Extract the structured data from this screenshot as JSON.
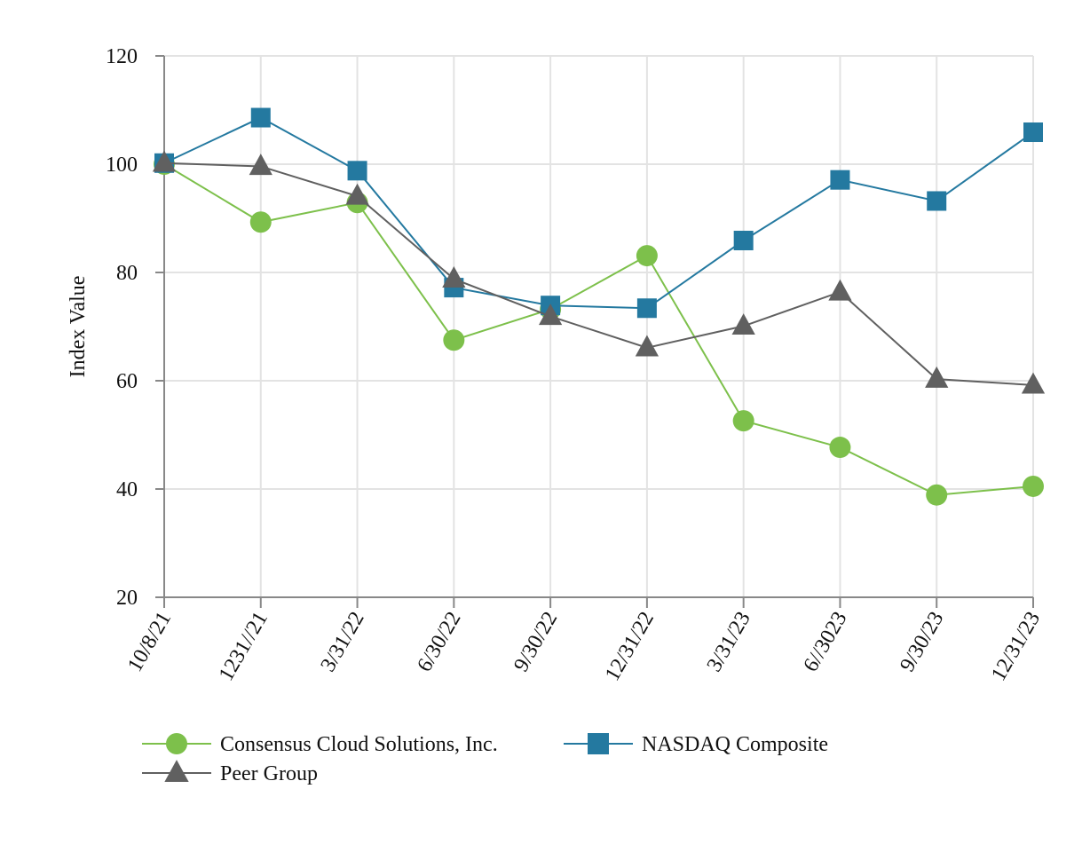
{
  "chart_data": {
    "type": "line",
    "title": "",
    "xlabel": "",
    "ylabel": "Index Value",
    "categories": [
      "10/8/21",
      "1231//21",
      "3/31/22",
      "6/30/22",
      "9/30/22",
      "12/31/22",
      "3/31/23",
      "6//3023",
      "9/30/23",
      "12/31/23"
    ],
    "ylim": [
      20,
      120
    ],
    "yticks": [
      "20",
      "40",
      "60",
      "80",
      "100",
      "120"
    ],
    "grid": true,
    "legend_position": "bottom",
    "series": [
      {
        "name": "Consensus Cloud Solutions, Inc.",
        "color": "#7dc04b",
        "marker": "circle",
        "values": [
          100,
          89.3,
          92.9,
          67.5,
          73.2,
          83.1,
          52.6,
          47.7,
          38.9,
          40.5
        ]
      },
      {
        "name": "NASDAQ Composite",
        "color": "#2479a0",
        "marker": "square",
        "values": [
          100.2,
          108.6,
          98.8,
          77.2,
          73.9,
          73.4,
          85.9,
          97.1,
          93.2,
          105.9
        ]
      },
      {
        "name": "Peer Group",
        "color": "#606060",
        "marker": "triangle",
        "values": [
          100.2,
          99.6,
          94.1,
          78.8,
          71.9,
          66.1,
          70.1,
          76.4,
          60.3,
          59.2
        ]
      }
    ]
  },
  "colors": {
    "axis": "#888888",
    "grid": "#e3e3e3"
  }
}
